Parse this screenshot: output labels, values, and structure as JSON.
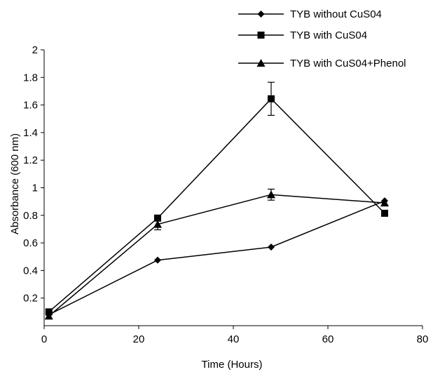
{
  "chart_data": {
    "type": "line",
    "xlabel": "Time (Hours)",
    "ylabel": "Absorbance (600 nm)",
    "xlim": [
      0,
      80
    ],
    "ylim": [
      0,
      2
    ],
    "xticks": [
      0,
      20,
      40,
      60,
      80
    ],
    "yticks": [
      0.2,
      0.4,
      0.6,
      0.8,
      1,
      1.2,
      1.4,
      1.6,
      1.8,
      2
    ],
    "grid": false,
    "legend_position": "top-right",
    "series": [
      {
        "name": "TYB without CuS04",
        "marker": "diamond",
        "x": [
          1,
          24,
          48,
          72
        ],
        "y": [
          0.08,
          0.475,
          0.57,
          0.905
        ],
        "err": [
          0,
          0,
          0,
          0
        ]
      },
      {
        "name": "TYB with CuS04",
        "marker": "square",
        "x": [
          1,
          24,
          48,
          72
        ],
        "y": [
          0.1,
          0.78,
          1.645,
          0.815
        ],
        "err": [
          0,
          0.02,
          0.12,
          0
        ]
      },
      {
        "name": "TYB with CuS04+Phenol",
        "marker": "triangle",
        "x": [
          1,
          24,
          48,
          72
        ],
        "y": [
          0.07,
          0.735,
          0.95,
          0.89
        ],
        "err": [
          0,
          0.04,
          0.04,
          0
        ]
      }
    ]
  }
}
